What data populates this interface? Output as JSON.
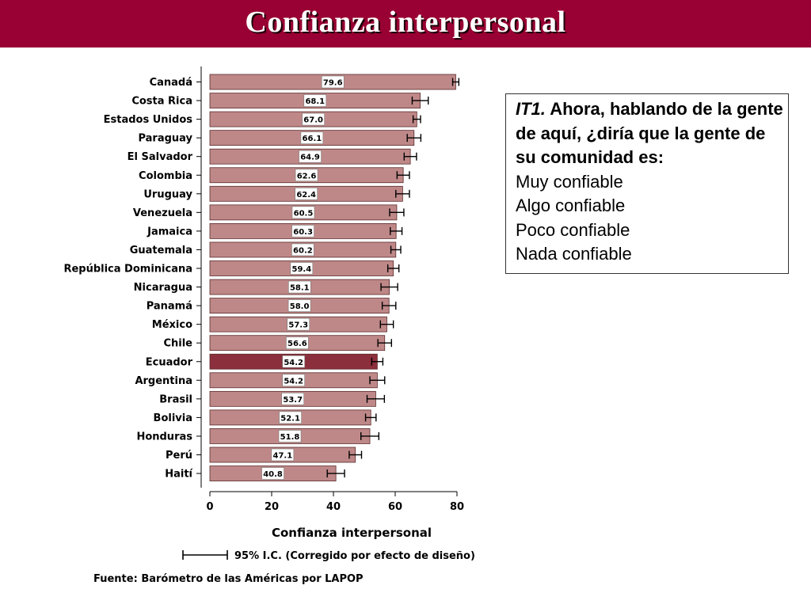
{
  "header": {
    "title": "Confianza interpersonal"
  },
  "chart_data": {
    "type": "bar",
    "orientation": "horizontal",
    "categories": [
      "Canadá",
      "Costa Rica",
      "Estados Unidos",
      "Paraguay",
      "El Salvador",
      "Colombia",
      "Uruguay",
      "Venezuela",
      "Jamaica",
      "Guatemala",
      "República Dominicana",
      "Nicaragua",
      "Panamá",
      "México",
      "Chile",
      "Ecuador",
      "Argentina",
      "Brasil",
      "Bolivia",
      "Honduras",
      "Perú",
      "Haití"
    ],
    "values": [
      79.6,
      68.1,
      67.0,
      66.1,
      64.9,
      62.6,
      62.4,
      60.5,
      60.3,
      60.2,
      59.4,
      58.1,
      58.0,
      57.3,
      56.6,
      54.2,
      54.2,
      53.7,
      52.1,
      51.8,
      47.1,
      40.8
    ],
    "value_labels": [
      "79.6",
      "68.1",
      "67.0",
      "66.1",
      "64.9",
      "62.6",
      "62.4",
      "60.5",
      "60.3",
      "60.2",
      "59.4",
      "58.1",
      "58.0",
      "57.3",
      "56.6",
      "54.2",
      "54.2",
      "53.7",
      "52.1",
      "51.8",
      "47.1",
      "40.8"
    ],
    "ci_half_width": [
      1.0,
      2.6,
      1.2,
      2.2,
      2.0,
      2.0,
      2.2,
      2.3,
      1.9,
      1.6,
      1.8,
      2.7,
      2.2,
      2.1,
      2.2,
      1.8,
      2.4,
      2.8,
      1.7,
      2.9,
      2.0,
      2.8
    ],
    "highlight_category": "Ecuador",
    "xlabel": "Confianza interpersonal",
    "xlim": [
      0,
      80
    ],
    "xticks": [
      0,
      20,
      40,
      60,
      80
    ],
    "legend_label": "95% I.C. (Corregido por efecto de diseño)",
    "grid": false,
    "colors": {
      "bar": "#bf8888",
      "bar_highlight": "#8c2f3c",
      "bar_border": "#5a2a2a",
      "axis": "#000000"
    }
  },
  "question": {
    "code": "IT1.",
    "text": " Ahora, hablando de la gente de aquí, ¿diría que la gente de su comunidad es:",
    "options": [
      "Muy confiable",
      "Algo confiable",
      "Poco confiable",
      "Nada confiable"
    ]
  },
  "source": {
    "text": "Fuente: Barómetro de las Américas por LAPOP"
  },
  "colors": {
    "title_bar": "#990033",
    "title_text": "#ffffff"
  }
}
